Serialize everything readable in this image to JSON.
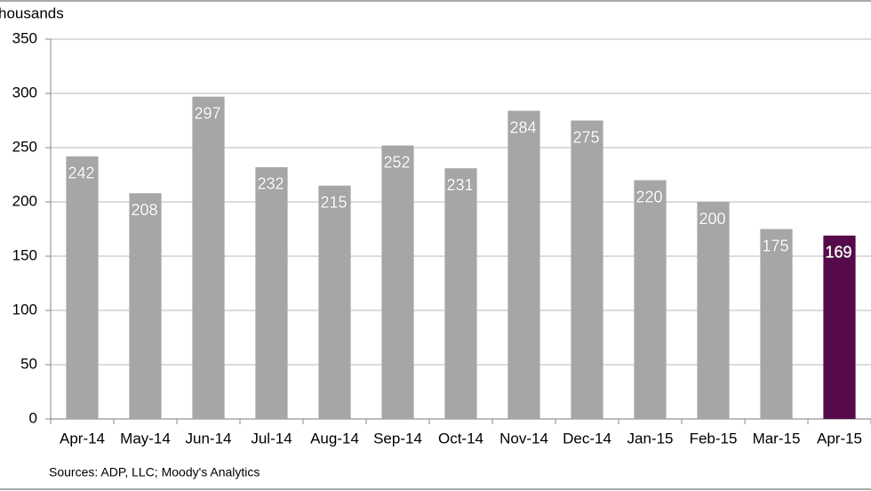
{
  "chart_data": {
    "type": "bar",
    "y_label": "housands",
    "source": "Sources: ADP, LLC; Moody's Analytics",
    "categories": [
      "Apr-14",
      "May-14",
      "Jun-14",
      "Jul-14",
      "Aug-14",
      "Sep-14",
      "Oct-14",
      "Nov-14",
      "Dec-14",
      "Jan-15",
      "Feb-15",
      "Mar-15",
      "Apr-15"
    ],
    "values": [
      242,
      208,
      297,
      232,
      215,
      252,
      231,
      284,
      275,
      220,
      200,
      175,
      169
    ],
    "colors": [
      "#a6a6a6",
      "#a6a6a6",
      "#a6a6a6",
      "#a6a6a6",
      "#a6a6a6",
      "#a6a6a6",
      "#a6a6a6",
      "#a6a6a6",
      "#a6a6a6",
      "#a6a6a6",
      "#a6a6a6",
      "#a6a6a6",
      "#560a4b"
    ],
    "ylim": [
      0,
      350
    ],
    "yticks": [
      0,
      50,
      100,
      150,
      200,
      250,
      300,
      350
    ],
    "grid": true
  }
}
